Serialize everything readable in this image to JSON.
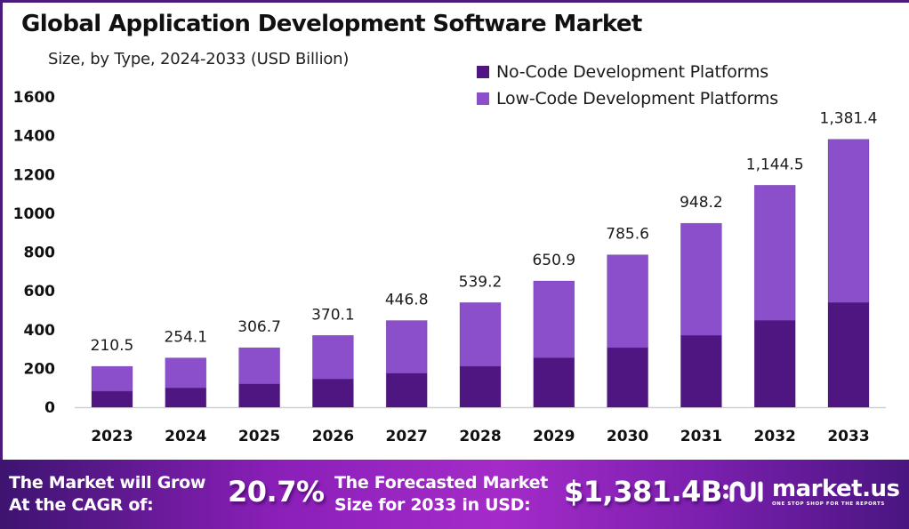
{
  "title": "Global Application Development Software Market",
  "subtitle": "Size, by Type, 2024-2033 (USD Billion)",
  "colors": {
    "no_code": "#4f1682",
    "low_code": "#8b4fcc",
    "frame": "#4a1a7e",
    "axis": "#cfcfcf"
  },
  "chart_data": {
    "type": "bar",
    "stacked": true,
    "title": "Global Application Development Software Market",
    "subtitle": "Size, by Type, 2024-2033 (USD Billion)",
    "xlabel": "",
    "ylabel": "",
    "categories": [
      "2023",
      "2024",
      "2025",
      "2026",
      "2027",
      "2028",
      "2029",
      "2030",
      "2031",
      "2032",
      "2033"
    ],
    "series": [
      {
        "name": "No-Code Development Platforms",
        "values": [
          82.2,
          99.2,
          119.8,
          144.5,
          174.5,
          210.6,
          254.2,
          306.8,
          370.3,
          446.9,
          539.5
        ]
      },
      {
        "name": "Low-Code Development Platforms",
        "values": [
          128.3,
          154.9,
          186.9,
          225.6,
          272.3,
          328.6,
          396.7,
          478.8,
          577.9,
          697.6,
          841.9
        ]
      }
    ],
    "totals": [
      210.5,
      254.1,
      306.7,
      370.1,
      446.8,
      539.2,
      650.9,
      785.6,
      948.2,
      1144.5,
      1381.4
    ],
    "total_labels": [
      "210.5",
      "254.1",
      "306.7",
      "370.1",
      "446.8",
      "539.2",
      "650.9",
      "785.6",
      "948.2",
      "1,144.5",
      "1,381.4"
    ],
    "ylim": [
      0,
      1600
    ],
    "yticks": [
      0,
      200,
      400,
      600,
      800,
      1000,
      1200,
      1400,
      1600
    ],
    "ytick_labels": [
      "0",
      "200",
      "400",
      "600",
      "800",
      "1000",
      "1200",
      "1400",
      "1600"
    ],
    "grid": false,
    "legend": {
      "position": "top-right",
      "entries": [
        "No-Code Development Platforms",
        "Low-Code Development Platforms"
      ]
    }
  },
  "banner": {
    "cagr_label_line1": "The Market will Grow",
    "cagr_label_line2": "At the CAGR of:",
    "cagr_value": "20.7%",
    "forecast_label_line1": "The Forecasted Market",
    "forecast_label_line2": "Size for 2033 in USD:",
    "forecast_value": "$1,381.4B"
  },
  "brand": {
    "logo_icon": "market-us-logo-icon",
    "name": "market.us",
    "tagline": "ONE STOP SHOP FOR THE REPORTS"
  }
}
